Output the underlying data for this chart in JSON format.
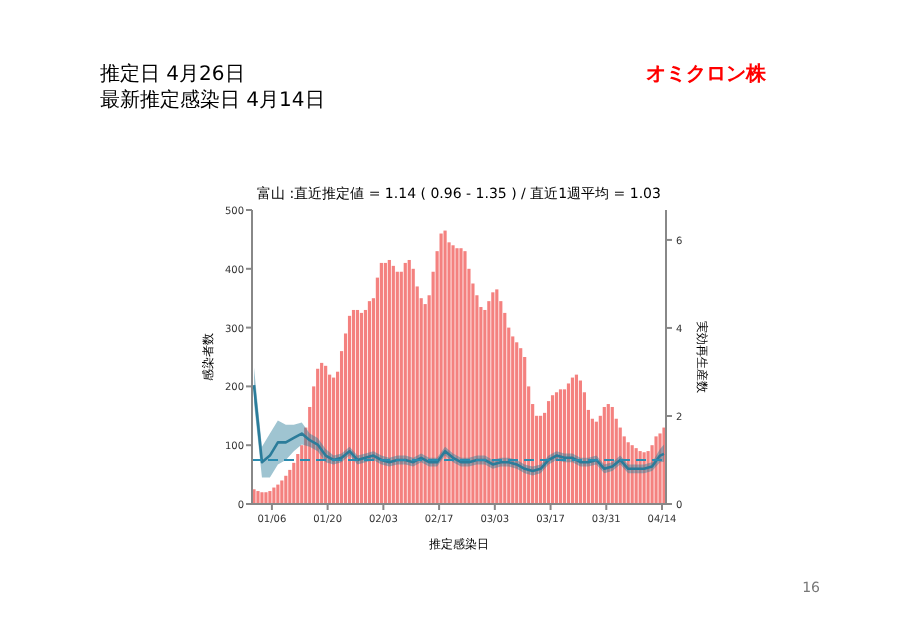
{
  "chart_data": {
    "type": "bar",
    "title": "富山 :直近推定値 = 1.14 ( 0.96 - 1.35 ) / 直近1週平均 = 1.03",
    "xlabel": "推定感染日",
    "ylabel": "感染者数",
    "y2label": "実効再生産数",
    "annotations": [
      "推定日  4月26日",
      "最新推定感染日  4月14日",
      "オミクロン株",
      "16"
    ],
    "x": [
      "--01-01",
      "--01-02",
      "--01-03",
      "--01-04",
      "--01-05",
      "--01-06",
      "--01-07",
      "--01-08",
      "--01-09",
      "--01-10",
      "--01-11",
      "--01-12",
      "--01-13",
      "--01-14",
      "--01-15",
      "--01-16",
      "--01-17",
      "--01-18",
      "--01-19",
      "--01-20",
      "--01-21",
      "--01-22",
      "--01-23",
      "--01-24",
      "--01-25",
      "--01-26",
      "--01-27",
      "--01-28",
      "--01-29",
      "--01-30",
      "--01-31",
      "--02-01",
      "--02-02",
      "--02-03",
      "--02-04",
      "--02-05",
      "--02-06",
      "--02-07",
      "--02-08",
      "--02-09",
      "--02-10",
      "--02-11",
      "--02-12",
      "--02-13",
      "--02-14",
      "--02-15",
      "--02-16",
      "--02-17",
      "--02-18",
      "--02-19",
      "--02-20",
      "--02-21",
      "--02-22",
      "--02-23",
      "--02-24",
      "--02-25",
      "--02-26",
      "--02-27",
      "--02-28",
      "--03-01",
      "--03-02",
      "--03-03",
      "--03-04",
      "--03-05",
      "--03-06",
      "--03-07",
      "--03-08",
      "--03-09",
      "--03-10",
      "--03-11",
      "--03-12",
      "--03-13",
      "--03-14",
      "--03-15",
      "--03-16",
      "--03-17",
      "--03-18",
      "--03-19",
      "--03-20",
      "--03-21",
      "--03-22",
      "--03-23",
      "--03-24",
      "--03-25",
      "--03-26",
      "--03-27",
      "--03-28",
      "--03-29",
      "--03-30",
      "--03-31",
      "--04-01",
      "--04-02",
      "--04-03",
      "--04-04",
      "--04-05",
      "--04-06",
      "--04-07",
      "--04-08",
      "--04-09",
      "--04-10",
      "--04-11",
      "--04-12",
      "--04-13",
      "--04-14"
    ],
    "series": [
      {
        "color": "#f4817f",
        "values": [
          25,
          22,
          20,
          20,
          22,
          28,
          33,
          40,
          48,
          58,
          70,
          85,
          100,
          130,
          165,
          200,
          230,
          240,
          235,
          220,
          215,
          225,
          260,
          290,
          320,
          330,
          330,
          325,
          330,
          345,
          350,
          385,
          410,
          410,
          415,
          405,
          395,
          395,
          410,
          415,
          400,
          370,
          350,
          340,
          355,
          395,
          430,
          460,
          465,
          445,
          440,
          435,
          435,
          430,
          400,
          375,
          355,
          335,
          330,
          345,
          360,
          365,
          345,
          325,
          300,
          285,
          275,
          265,
          250,
          200,
          170,
          150,
          150,
          155,
          175,
          185,
          190,
          195,
          195,
          205,
          215,
          220,
          210,
          190,
          160,
          145,
          140,
          150,
          165,
          170,
          165,
          145,
          130,
          115,
          105,
          100,
          95,
          90,
          88,
          90,
          100,
          115,
          120,
          130
        ]
      },
      {
        "type": "line",
        "axis": "y2",
        "color": "#2b7c9a",
        "x": [
          "--01-01",
          "--01-03",
          "--01-05",
          "--01-07",
          "--01-09",
          "--01-11",
          "--01-13",
          "--01-15",
          "--01-17",
          "--01-19",
          "--01-21",
          "--01-23",
          "--01-25",
          "--01-27",
          "--01-29",
          "--01-31",
          "--02-02",
          "--02-04",
          "--02-06",
          "--02-08",
          "--02-10",
          "--02-12",
          "--02-14",
          "--02-16",
          "--02-18",
          "--02-20",
          "--02-22",
          "--02-24",
          "--02-26",
          "--02-28",
          "--03-02",
          "--03-04",
          "--03-06",
          "--03-08",
          "--03-10",
          "--03-12",
          "--03-14",
          "--03-16",
          "--03-18",
          "--03-20",
          "--03-22",
          "--03-24",
          "--03-26",
          "--03-28",
          "--03-30",
          "--04-01",
          "--04-03",
          "--04-05",
          "--04-07",
          "--04-09",
          "--04-11",
          "--04-13",
          "--04-14"
        ],
        "values": [
          2.7,
          0.95,
          1.1,
          1.4,
          1.4,
          1.5,
          1.6,
          1.45,
          1.35,
          1.1,
          1.0,
          1.05,
          1.2,
          1.0,
          1.05,
          1.1,
          1.0,
          0.95,
          1.0,
          1.0,
          0.95,
          1.05,
          0.95,
          0.95,
          1.2,
          1.05,
          0.95,
          0.95,
          1.0,
          1.0,
          0.9,
          0.95,
          0.95,
          0.9,
          0.8,
          0.75,
          0.8,
          1.0,
          1.1,
          1.05,
          1.05,
          0.95,
          0.95,
          1.0,
          0.8,
          0.85,
          1.0,
          0.8,
          0.8,
          0.8,
          0.85,
          1.1,
          1.14
        ],
        "lower": [
          2.3,
          0.6,
          0.6,
          0.9,
          1.0,
          1.2,
          1.35,
          1.3,
          1.2,
          0.95,
          0.9,
          0.95,
          1.1,
          0.9,
          0.95,
          1.0,
          0.9,
          0.85,
          0.9,
          0.9,
          0.85,
          0.95,
          0.85,
          0.85,
          1.1,
          0.95,
          0.85,
          0.85,
          0.9,
          0.9,
          0.8,
          0.85,
          0.85,
          0.8,
          0.7,
          0.65,
          0.7,
          0.9,
          1.0,
          0.95,
          0.95,
          0.85,
          0.85,
          0.9,
          0.7,
          0.75,
          0.9,
          0.7,
          0.7,
          0.7,
          0.75,
          0.95,
          0.96
        ],
        "upper": [
          3.1,
          1.3,
          1.6,
          1.9,
          1.8,
          1.8,
          1.85,
          1.6,
          1.5,
          1.25,
          1.1,
          1.15,
          1.3,
          1.1,
          1.15,
          1.2,
          1.1,
          1.05,
          1.1,
          1.1,
          1.05,
          1.15,
          1.05,
          1.05,
          1.3,
          1.15,
          1.05,
          1.05,
          1.1,
          1.1,
          1.0,
          1.05,
          1.05,
          1.0,
          0.9,
          0.85,
          0.9,
          1.1,
          1.2,
          1.15,
          1.15,
          1.05,
          1.05,
          1.1,
          0.9,
          0.95,
          1.1,
          0.9,
          0.9,
          0.9,
          0.95,
          1.25,
          1.35
        ]
      }
    ],
    "ref_lines": [
      {
        "axis": "y2",
        "value": 1,
        "color": "#2b8cb0",
        "line_style": "dashed"
      }
    ],
    "xlim": [
      "--01-01",
      "--04-15"
    ],
    "xticks": [
      {
        "value": "--01-06",
        "label": "01/06"
      },
      {
        "value": "--01-20",
        "label": "01/20"
      },
      {
        "value": "--02-03",
        "label": "02/03"
      },
      {
        "value": "--02-17",
        "label": "02/17"
      },
      {
        "value": "--03-03",
        "label": "03/03"
      },
      {
        "value": "--03-17",
        "label": "03/17"
      },
      {
        "value": "--03-31",
        "label": "03/31"
      },
      {
        "value": "--04-14",
        "label": "04/14"
      }
    ],
    "ylim": [
      0,
      500
    ],
    "yticks": [
      0,
      100,
      200,
      300,
      400,
      500
    ],
    "y2lim": [
      0,
      6.68
    ],
    "y2ticks": [
      0,
      2,
      4,
      6
    ],
    "grid": false
  }
}
